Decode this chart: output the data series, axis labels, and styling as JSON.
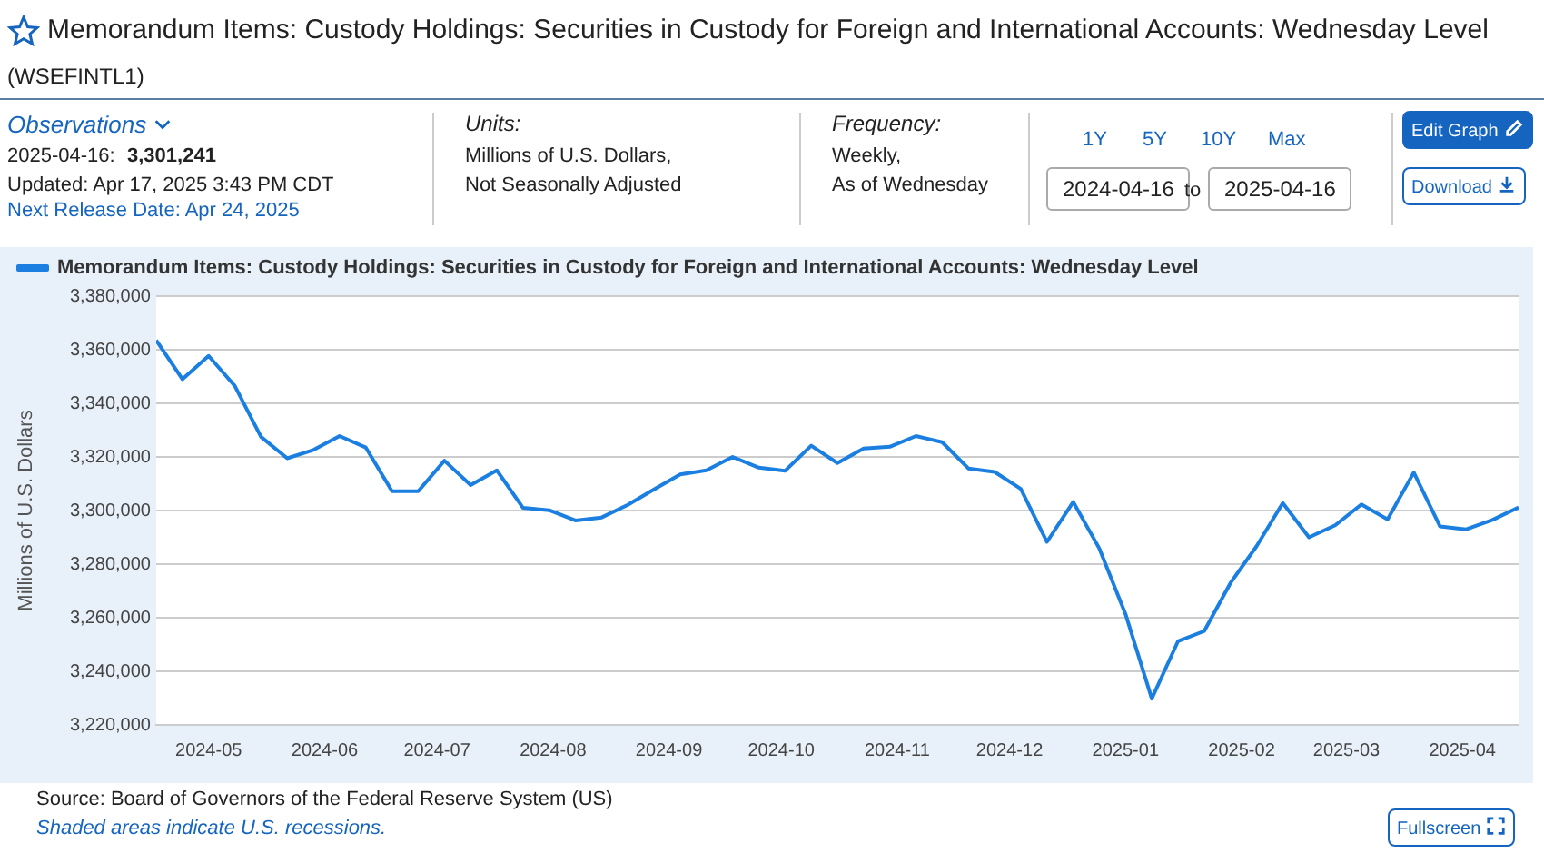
{
  "chart_data": {
    "type": "line",
    "title": "Memorandum Items: Custody Holdings: Securities in Custody for Foreign and International Accounts: Wednesday Level",
    "subtitle": "(WSEFINTL1)",
    "ylabel": "Millions of U.S. Dollars",
    "x": [
      "2024-04-17",
      "2024-04-24",
      "2024-05-01",
      "2024-05-08",
      "2024-05-15",
      "2024-05-22",
      "2024-05-29",
      "2024-06-05",
      "2024-06-12",
      "2024-06-19",
      "2024-06-26",
      "2024-07-03",
      "2024-07-10",
      "2024-07-17",
      "2024-07-24",
      "2024-07-31",
      "2024-08-07",
      "2024-08-14",
      "2024-08-21",
      "2024-08-28",
      "2024-09-04",
      "2024-09-11",
      "2024-09-18",
      "2024-09-25",
      "2024-10-02",
      "2024-10-09",
      "2024-10-16",
      "2024-10-23",
      "2024-10-30",
      "2024-11-06",
      "2024-11-13",
      "2024-11-20",
      "2024-11-27",
      "2024-12-04",
      "2024-12-11",
      "2024-12-18",
      "2024-12-25",
      "2025-01-01",
      "2025-01-08",
      "2025-01-15",
      "2025-01-22",
      "2025-01-29",
      "2025-02-05",
      "2025-02-12",
      "2025-02-19",
      "2025-02-26",
      "2025-03-05",
      "2025-03-12",
      "2025-03-19",
      "2025-03-26",
      "2025-04-02",
      "2025-04-09",
      "2025-04-16"
    ],
    "series": [
      {
        "name": "Memorandum Items: Custody Holdings: Securities in Custody for Foreign and International Accounts: Wednesday Level",
        "color": "#1a7fe0",
        "values": [
          3363500,
          3349000,
          3357700,
          3346500,
          3327500,
          3319500,
          3322600,
          3327800,
          3323500,
          3307200,
          3307200,
          3318600,
          3309500,
          3315000,
          3301000,
          3300100,
          3296300,
          3297400,
          3302100,
          3307900,
          3313500,
          3315000,
          3320000,
          3316000,
          3314800,
          3324200,
          3317700,
          3323100,
          3323800,
          3327800,
          3325500,
          3315700,
          3314400,
          3308100,
          3288300,
          3303200,
          3285800,
          3261300,
          3229800,
          3251200,
          3255000,
          3272900,
          3286700,
          3302800,
          3290000,
          3294500,
          3302300,
          3296700,
          3314200,
          3294100,
          3293000,
          3296500,
          3301200
        ]
      }
    ],
    "xlim": [
      "2024-04-17",
      "2025-04-16"
    ],
    "xticks": [
      "2024-05",
      "2024-06",
      "2024-07",
      "2024-08",
      "2024-09",
      "2024-10",
      "2024-11",
      "2024-12",
      "2025-01",
      "2025-02",
      "2025-03",
      "2025-04"
    ],
    "ylim": [
      3220000,
      3380000
    ],
    "yticks": [
      {
        "value": 3220000,
        "label": "3,220,000"
      },
      {
        "value": 3240000,
        "label": "3,240,000"
      },
      {
        "value": 3260000,
        "label": "3,260,000"
      },
      {
        "value": 3280000,
        "label": "3,280,000"
      },
      {
        "value": 3300000,
        "label": "3,300,000"
      },
      {
        "value": 3320000,
        "label": "3,320,000"
      },
      {
        "value": 3340000,
        "label": "3,340,000"
      },
      {
        "value": 3360000,
        "label": "3,360,000"
      },
      {
        "value": 3380000,
        "label": "3,380,000"
      }
    ],
    "grid": "y",
    "legend": "top left",
    "marker": "none",
    "line_style": "solid",
    "annotations": [
      "Observations",
      "2025-04-16:",
      "3,301,241",
      "Updated: Apr 17, 2025 3:43 PM CDT",
      "Next Release Date: Apr 24, 2025",
      "Units:",
      "Millions of U.S. Dollars,",
      "Not Seasonally Adjusted",
      "Frequency:",
      "Weekly,",
      "As of Wednesday",
      "1Y",
      "5Y",
      "10Y",
      "Max",
      "2024-04-16",
      "to",
      "2025-04-16",
      "Edit Graph",
      "Download",
      "Source: Board of Governors of the Federal Reserve System (US)",
      "Shaded areas indicate U.S. recessions.",
      "Fullscreen"
    ]
  }
}
